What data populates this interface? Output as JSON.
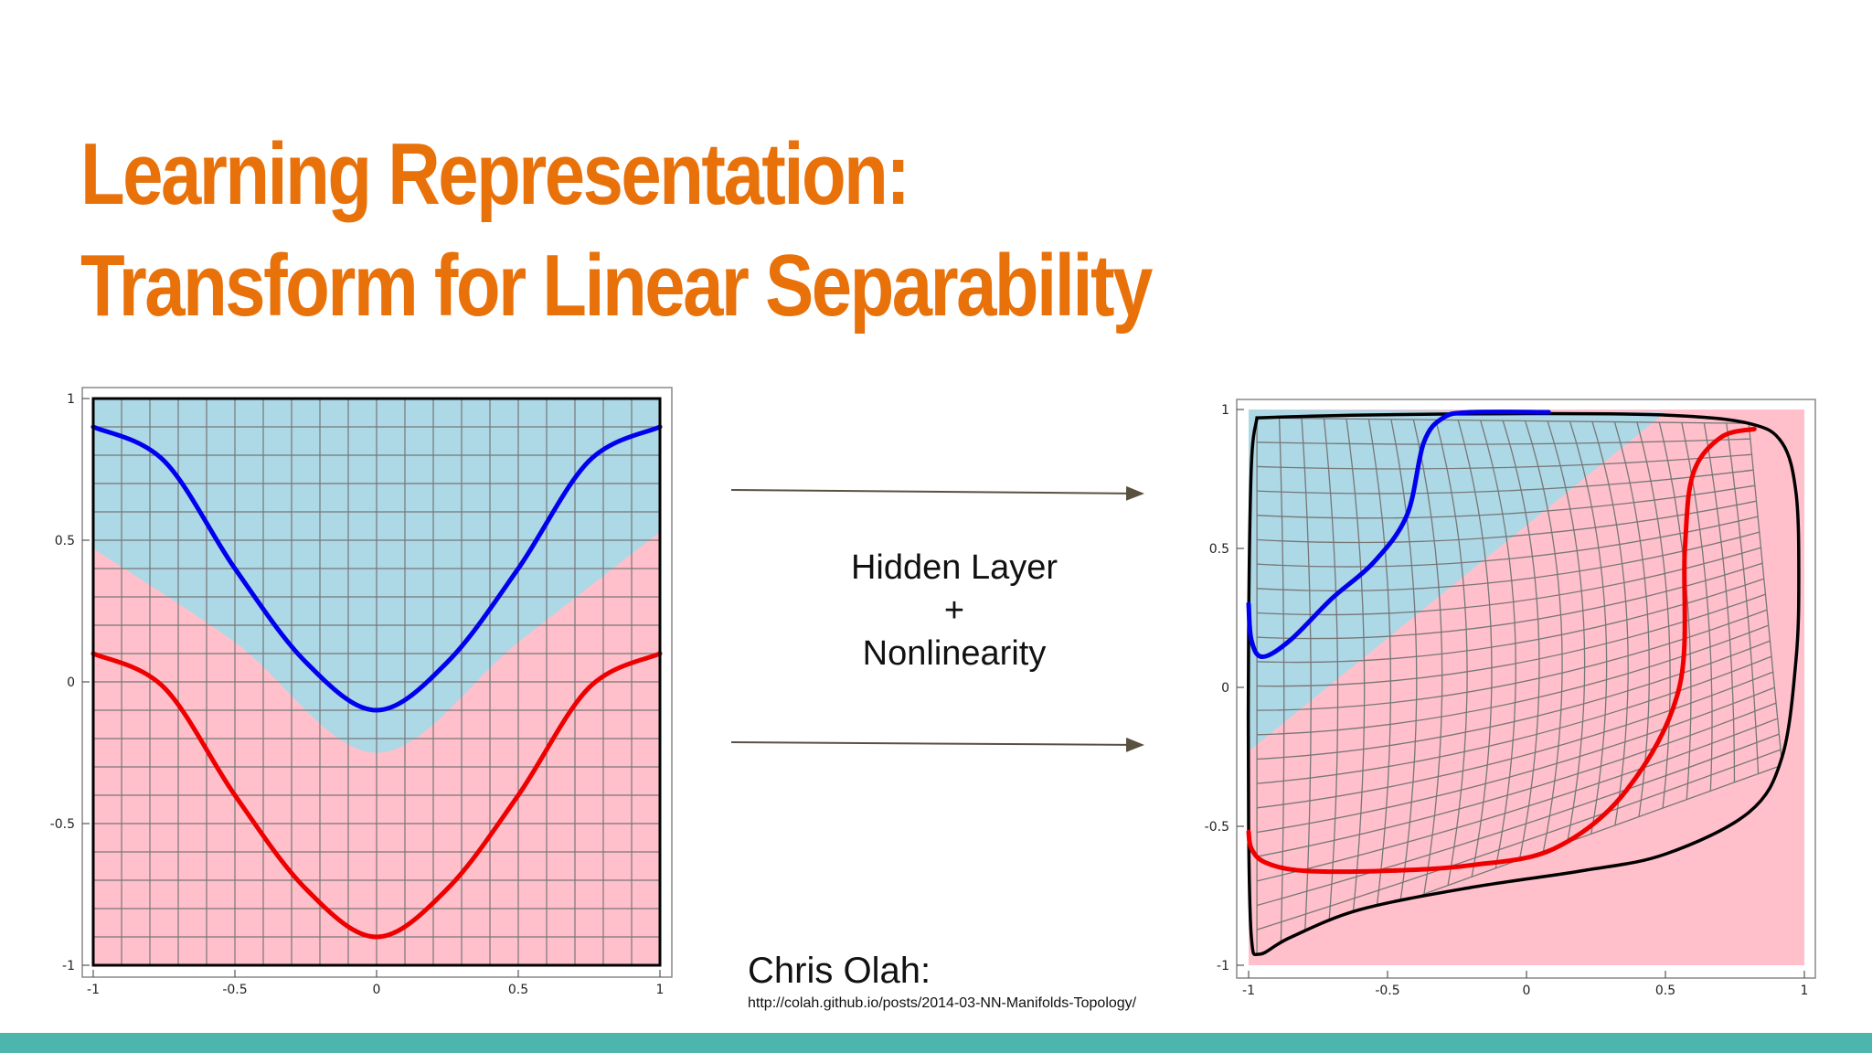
{
  "slide": {
    "title_line1": "Learning Representation:",
    "title_line2": "Transform for Linear Separability",
    "colors": {
      "title": "#e8710a",
      "footer_bar": "#4db6ac"
    }
  },
  "transform_label": {
    "line1": "Hidden Layer",
    "line2": "+",
    "line3": "Nonlinearity"
  },
  "credit": {
    "name": "Chris Olah:",
    "url": "http://colah.github.io/posts/2014-03-NN-Manifolds-Topology/"
  },
  "chart_data": [
    {
      "type": "line",
      "title": "",
      "xlim": [
        -1,
        1
      ],
      "ylim": [
        -1,
        1
      ],
      "grid": true,
      "x_ticks": [
        "-1",
        "-0.5",
        "0",
        "0.5",
        "1"
      ],
      "y_ticks": [
        "1",
        "0.5",
        "0",
        "-0.5",
        "-1"
      ],
      "region_colors": {
        "upper": "#add8e6",
        "lower": "#ffc0cb"
      },
      "boundary": {
        "x": [
          -1,
          -0.5,
          0,
          0.5,
          1
        ],
        "y": [
          0.47,
          0.14,
          -0.25,
          0.14,
          0.53
        ]
      },
      "series": [
        {
          "color": "#0000ee",
          "x": [
            -1,
            -0.75,
            -0.5,
            -0.25,
            0,
            0.25,
            0.5,
            0.75,
            1
          ],
          "y": [
            0.9,
            0.78,
            0.4,
            0.07,
            -0.1,
            0.07,
            0.4,
            0.78,
            0.9
          ]
        },
        {
          "color": "#ee0000",
          "x": [
            -1,
            -0.75,
            -0.5,
            -0.25,
            0,
            0.25,
            0.5,
            0.75,
            1
          ],
          "y": [
            0.1,
            -0.02,
            -0.4,
            -0.73,
            -0.9,
            -0.73,
            -0.4,
            -0.02,
            0.1
          ]
        }
      ]
    },
    {
      "type": "line",
      "title": "",
      "xlim": [
        -1,
        1
      ],
      "ylim": [
        -1,
        1
      ],
      "grid": true,
      "x_ticks": [
        "-1",
        "-0.5",
        "0",
        "0.5",
        "1"
      ],
      "y_ticks": [
        "1",
        "0.5",
        "0",
        "-0.5",
        "-1"
      ],
      "region_colors": {
        "upper": "#add8e6",
        "lower": "#ffc0cb"
      },
      "boundary": {
        "x": [
          -1,
          0.5
        ],
        "y": [
          -0.23,
          0.99
        ]
      },
      "outline": {
        "x": [
          -0.97,
          -0.6,
          0,
          0.5,
          0.8,
          0.92,
          0.97,
          0.98,
          0.97,
          0.92,
          0.8,
          0.5,
          0.2,
          -0.2,
          -0.6,
          -0.85,
          -0.96,
          -0.99,
          -1.0,
          -1.0,
          -0.99,
          -0.97
        ],
        "y": [
          0.97,
          0.98,
          0.985,
          0.98,
          0.95,
          0.88,
          0.7,
          0.4,
          0.1,
          -0.25,
          -0.45,
          -0.6,
          -0.66,
          -0.72,
          -0.8,
          -0.9,
          -0.96,
          -0.9,
          -0.5,
          0.2,
          0.8,
          0.97
        ]
      },
      "series": [
        {
          "color": "#0000ee",
          "x": [
            -1.0,
            -0.99,
            -0.95,
            -0.85,
            -0.7,
            -0.55,
            -0.43,
            -0.37,
            -0.3,
            -0.2,
            0.08
          ],
          "y": [
            0.3,
            0.17,
            0.11,
            0.17,
            0.32,
            0.45,
            0.62,
            0.88,
            0.97,
            0.99,
            0.99
          ]
        },
        {
          "color": "#ee0000",
          "x": [
            -1.0,
            -0.99,
            -0.94,
            -0.8,
            -0.5,
            -0.2,
            0.1,
            0.36,
            0.55,
            0.57,
            0.6,
            0.7,
            0.82
          ],
          "y": [
            -0.52,
            -0.58,
            -0.63,
            -0.66,
            -0.66,
            -0.64,
            -0.58,
            -0.37,
            0.0,
            0.5,
            0.77,
            0.9,
            0.93
          ]
        }
      ]
    }
  ]
}
